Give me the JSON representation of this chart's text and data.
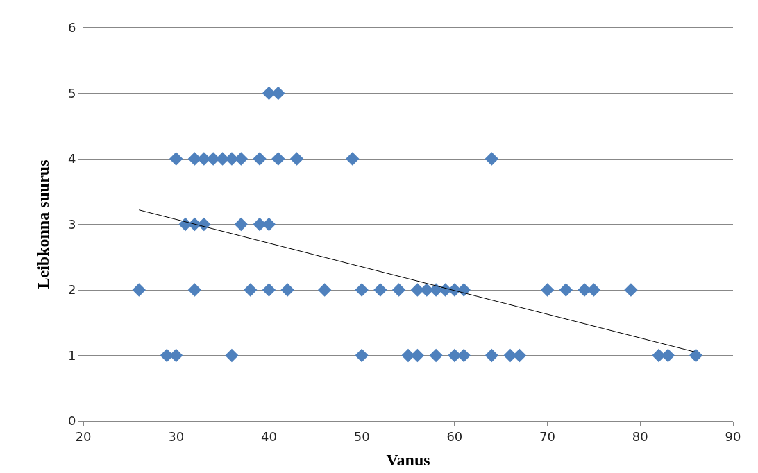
{
  "chart_data": {
    "type": "scatter",
    "xlabel": "Vanus",
    "ylabel": "Leibkonna suurus",
    "xlim": [
      20,
      90
    ],
    "xticks": [
      20,
      30,
      40,
      50,
      60,
      70,
      80,
      90
    ],
    "ylim": [
      0,
      6
    ],
    "yticks": [
      0,
      1,
      2,
      3,
      4,
      5,
      6
    ],
    "grid": "y",
    "marker": "diamond",
    "series": [
      {
        "color": "#4f81bd",
        "x": [
          30,
          32,
          33,
          34,
          35,
          36,
          37,
          39,
          41,
          43,
          49,
          64,
          40,
          41,
          31,
          32,
          33,
          37,
          39,
          40,
          26,
          32,
          38,
          40,
          42,
          46,
          50,
          52,
          54,
          56,
          57,
          58,
          59,
          60,
          61,
          70,
          72,
          74,
          75,
          79,
          29,
          30,
          36,
          50,
          55,
          56,
          58,
          60,
          61,
          64,
          66,
          67,
          82,
          83,
          86
        ],
        "values": [
          4,
          4,
          4,
          4,
          4,
          4,
          4,
          4,
          4,
          4,
          4,
          4,
          5,
          5,
          3,
          3,
          3,
          3,
          3,
          3,
          2,
          2,
          2,
          2,
          2,
          2,
          2,
          2,
          2,
          2,
          2,
          2,
          2,
          2,
          2,
          2,
          2,
          2,
          2,
          2,
          1,
          1,
          1,
          1,
          1,
          1,
          1,
          1,
          1,
          1,
          1,
          1,
          1,
          1,
          1
        ]
      },
      {
        "type": "line",
        "color": "#000000",
        "x": [
          26,
          86
        ],
        "values": [
          3.22,
          1.05
        ],
        "marker": "none"
      }
    ]
  }
}
